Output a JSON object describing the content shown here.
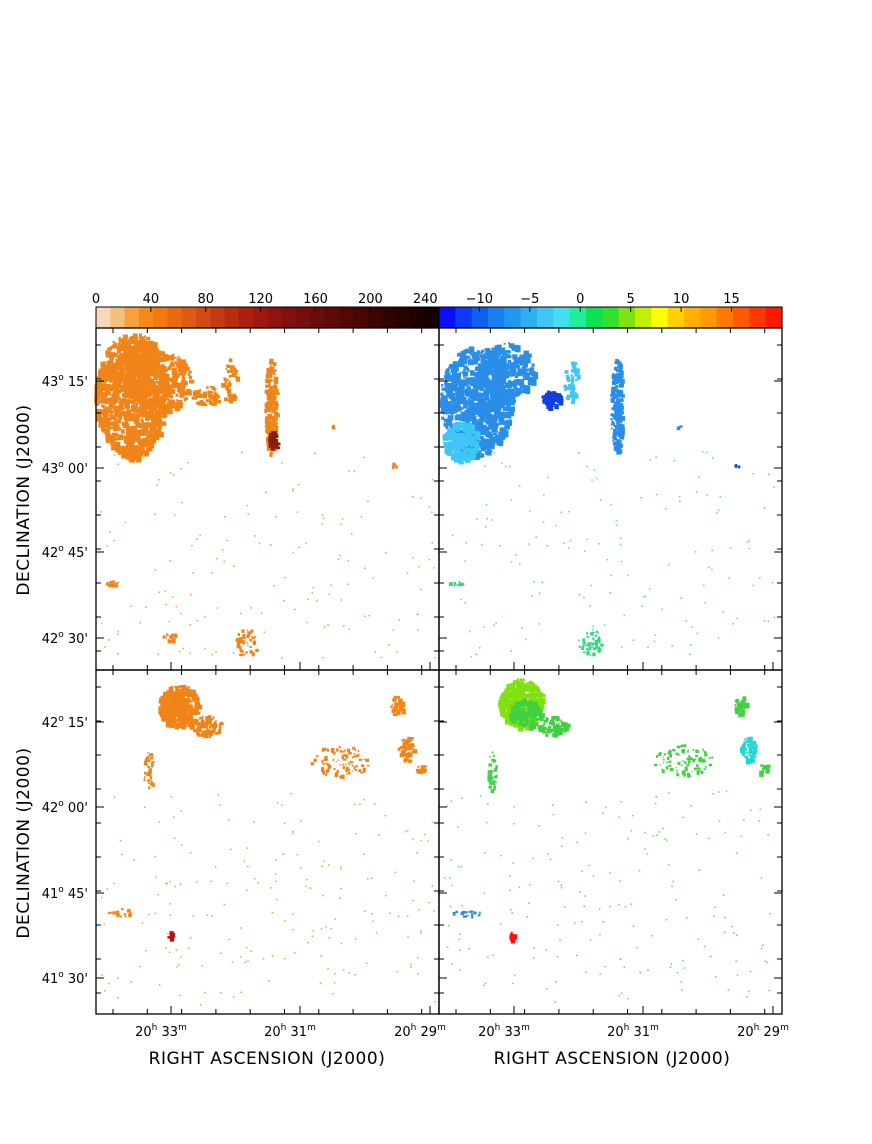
{
  "chart_data": {
    "type": "heatmap",
    "layout": "2x2 panel grid",
    "colorbars": [
      {
        "panel_column": "left",
        "tick_labels": [
          "0",
          "40",
          "80",
          "120",
          "160",
          "200",
          "240"
        ],
        "range": [
          0,
          250
        ],
        "colors": [
          "#f5d9b8",
          "#f4c080",
          "#f7a040",
          "#f68a18",
          "#f27a10",
          "#e86a10",
          "#df5a12",
          "#d14a12",
          "#c53a12",
          "#b92c10",
          "#ac2010",
          "#9e180e",
          "#90130e",
          "#82100c",
          "#760e0c",
          "#6a0c0a",
          "#5e0a08",
          "#530806",
          "#480605",
          "#3d0404",
          "#320303",
          "#280202",
          "#1e0101",
          "#140000"
        ]
      },
      {
        "panel_column": "right",
        "tick_labels": [
          "−10",
          "−5",
          "0",
          "5",
          "10",
          "15"
        ],
        "range": [
          -14,
          20
        ],
        "colors": [
          "#0a10ff",
          "#0a3cf5",
          "#1060f0",
          "#1a80ef",
          "#2098ee",
          "#30aef0",
          "#40c6f4",
          "#40e0ec",
          "#20ee9a",
          "#10e050",
          "#30e030",
          "#80e010",
          "#c0f000",
          "#ffff00",
          "#ffd000",
          "#ffb000",
          "#ff9a00",
          "#ff7a00",
          "#ff5a00",
          "#ff3800",
          "#ff1800"
        ]
      }
    ],
    "panels": [
      {
        "position": "top-left",
        "ylabel": "DECLINATION (J2000)",
        "yticks": [
          {
            "deg": "43",
            "min": "15'"
          },
          {
            "deg": "43",
            "min": "00'"
          },
          {
            "deg": "42",
            "min": "45'"
          },
          {
            "deg": "42",
            "min": "30'"
          }
        ],
        "color": "#f08418",
        "dark_blob_color": "#8a1c08"
      },
      {
        "position": "top-right",
        "color_primary": "#2a8ee8",
        "color_secondary": "#40c6f4",
        "color_dark": "#1040e0",
        "color_minor": "#30d880"
      },
      {
        "position": "bottom-left",
        "ylabel": "DECLINATION (J2000)",
        "yticks": [
          {
            "deg": "42",
            "min": "15'"
          },
          {
            "deg": "42",
            "min": "00'"
          },
          {
            "deg": "41",
            "min": "45'"
          },
          {
            "deg": "41",
            "min": "30'"
          }
        ],
        "xlabel": "RIGHT ASCENSION (J2000)",
        "xticks": [
          {
            "h": "20",
            "m": "33"
          },
          {
            "h": "20",
            "m": "31"
          },
          {
            "h": "20",
            "m": "29"
          }
        ],
        "color": "#f08418",
        "red_spot_color": "#c01010"
      },
      {
        "position": "bottom-right",
        "xlabel": "RIGHT ASCENSION (J2000)",
        "xticks": [
          {
            "h": "20",
            "m": "33"
          },
          {
            "h": "20",
            "m": "31"
          },
          {
            "h": "20",
            "m": "29"
          }
        ],
        "color_primary": "#40d040",
        "color_secondary": "#80e010",
        "color_cyan": "#20d8d0",
        "red_spot_color": "#ff1010"
      }
    ]
  }
}
